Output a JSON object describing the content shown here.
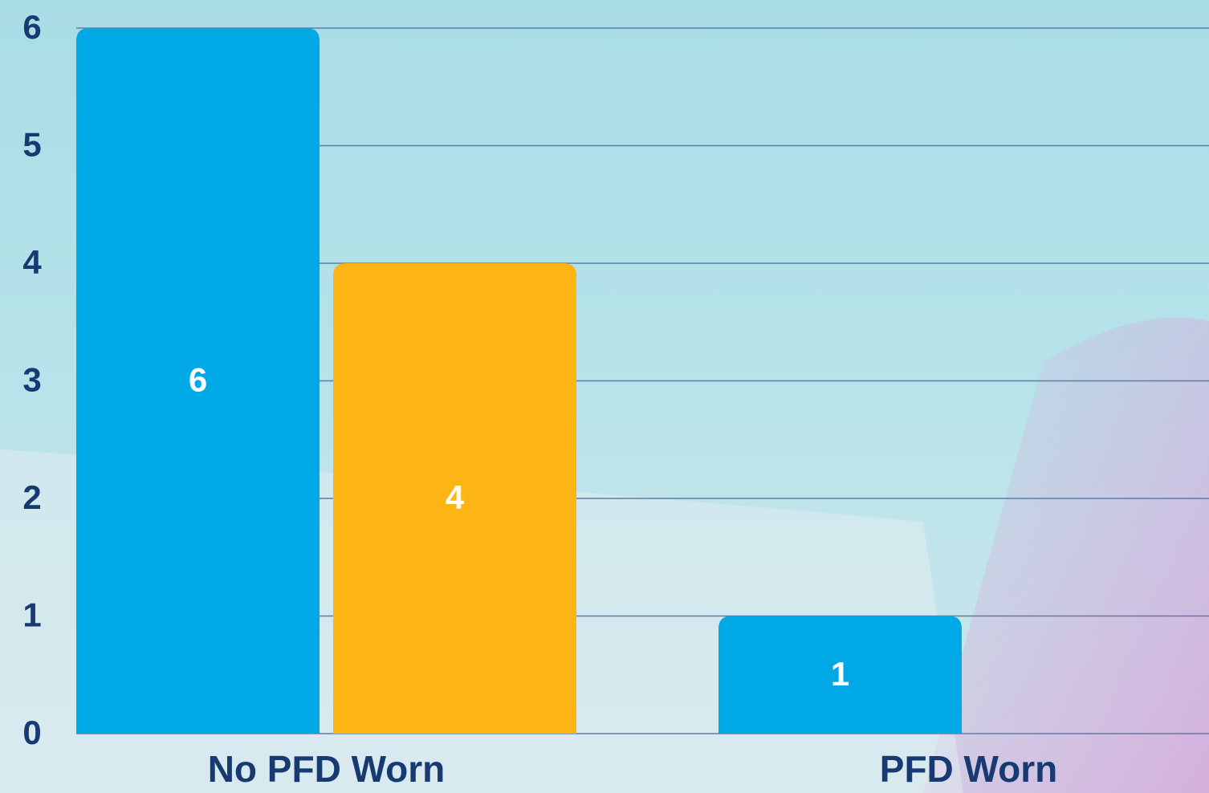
{
  "chart_data": {
    "type": "bar",
    "categories": [
      "No PFD Worn",
      "PFD Worn"
    ],
    "series": [
      {
        "color": "#00a9e6",
        "values": [
          6,
          1
        ]
      },
      {
        "color": "#fcb514",
        "values": [
          4,
          null
        ]
      }
    ],
    "ylim": [
      0,
      6
    ],
    "yticks": [
      0,
      1,
      2,
      3,
      4,
      5,
      6
    ],
    "grid": true
  }
}
